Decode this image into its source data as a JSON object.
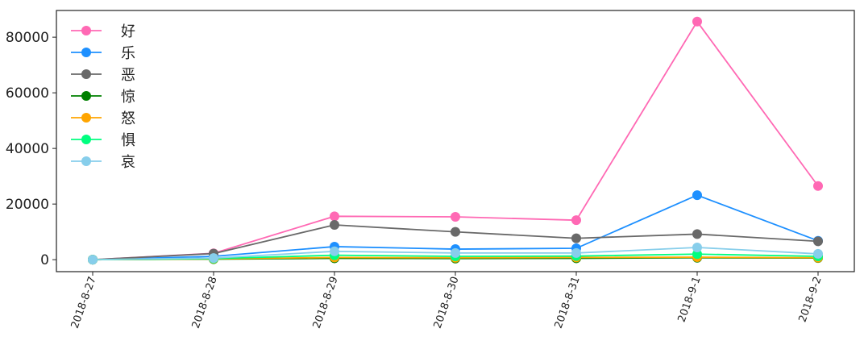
{
  "chart_data": {
    "type": "line",
    "categories": [
      "2018-8-27",
      "2018-8-28",
      "2018-8-29",
      "2018-8-30",
      "2018-8-31",
      "2018-9-1",
      "2018-9-2"
    ],
    "series": [
      {
        "name": "好",
        "color": "#ff69b4",
        "values": [
          0,
          2300,
          15600,
          15400,
          14200,
          85600,
          26500
        ]
      },
      {
        "name": "乐",
        "color": "#1e90ff",
        "values": [
          0,
          1200,
          4700,
          3800,
          4100,
          23200,
          6800
        ]
      },
      {
        "name": "恶",
        "color": "#696969",
        "values": [
          0,
          2200,
          12500,
          10000,
          7700,
          9200,
          6600
        ]
      },
      {
        "name": "惊",
        "color": "#008000",
        "values": [
          0,
          200,
          500,
          400,
          500,
          700,
          600
        ]
      },
      {
        "name": "怒",
        "color": "#ffa500",
        "values": [
          0,
          300,
          800,
          700,
          800,
          900,
          700
        ]
      },
      {
        "name": "惧",
        "color": "#00ff7f",
        "values": [
          0,
          400,
          1600,
          1200,
          1300,
          2000,
          1200
        ]
      },
      {
        "name": "哀",
        "color": "#87ceeb",
        "values": [
          0,
          600,
          3000,
          2400,
          2400,
          4400,
          2100
        ]
      }
    ],
    "ylim": [
      -4300,
      89600
    ],
    "yticks": [
      0,
      20000,
      40000,
      60000,
      80000
    ],
    "legend": "upper left"
  }
}
